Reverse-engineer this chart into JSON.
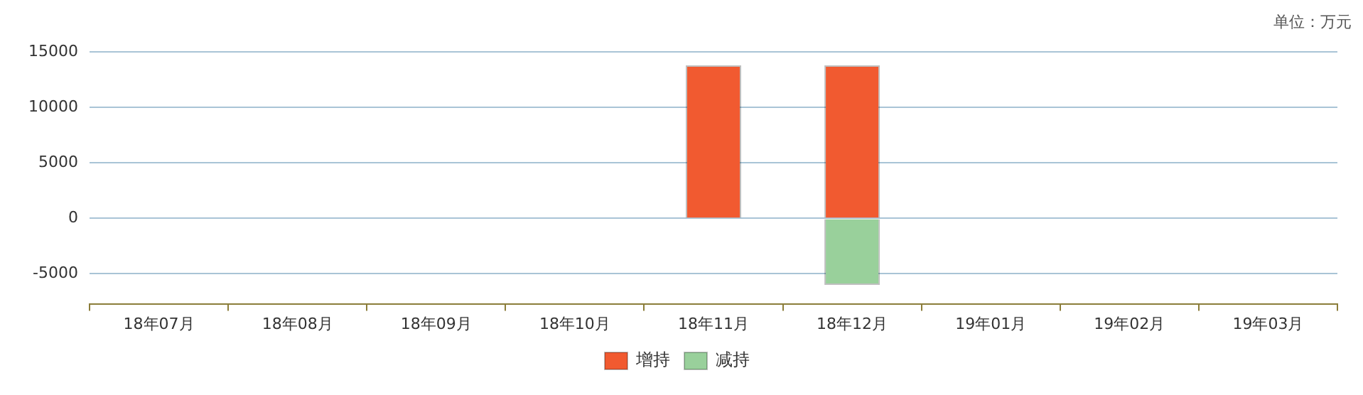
{
  "chart_data": {
    "type": "bar",
    "stacked": true,
    "categories": [
      "18年07月",
      "18年08月",
      "18年09月",
      "18年10月",
      "18年11月",
      "18年12月",
      "19年01月",
      "19年02月",
      "19年03月"
    ],
    "series": [
      {
        "name": "增持",
        "color": "#f15a30",
        "values": [
          null,
          null,
          null,
          null,
          13800,
          13800,
          null,
          null,
          null
        ]
      },
      {
        "name": "减持",
        "color": "#99d09b",
        "values": [
          null,
          null,
          null,
          null,
          null,
          -6000,
          null,
          null,
          null
        ]
      }
    ],
    "ylim": [
      -7700,
      15000
    ],
    "yticks": [
      -5000,
      0,
      5000,
      10000,
      15000
    ],
    "grid": "y",
    "legend": "bottom",
    "annotations": [
      "单位：万元"
    ]
  }
}
